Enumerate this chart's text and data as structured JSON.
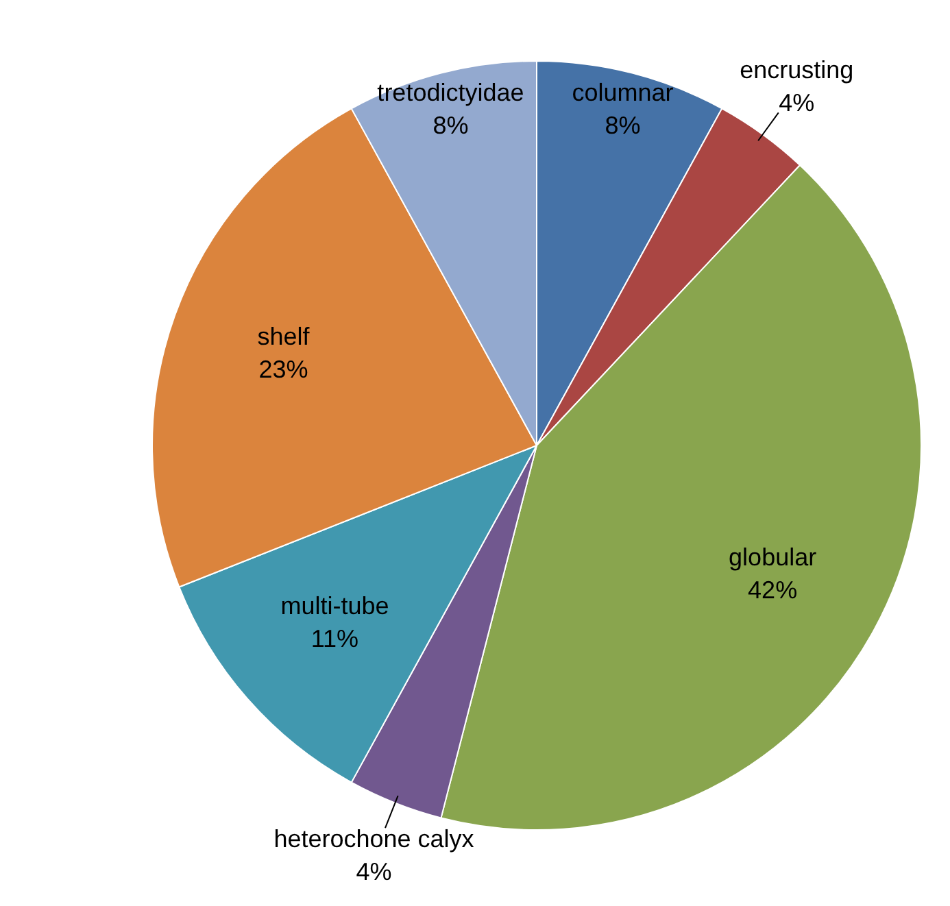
{
  "chart_data": {
    "type": "pie",
    "categories": [
      "columnar",
      "encrusting",
      "globular",
      "heterochone calyx",
      "multi-tube",
      "shelf",
      "tretodictyidae"
    ],
    "values": [
      8,
      4,
      42,
      4,
      11,
      23,
      8
    ],
    "colors": [
      "#4572a7",
      "#aa4643",
      "#89a54e",
      "#71588f",
      "#4198af",
      "#db843d",
      "#93a9cf"
    ],
    "value_labels": [
      "8%",
      "4%",
      "42%",
      "4%",
      "11%",
      "23%",
      "8%"
    ],
    "legend": false
  }
}
